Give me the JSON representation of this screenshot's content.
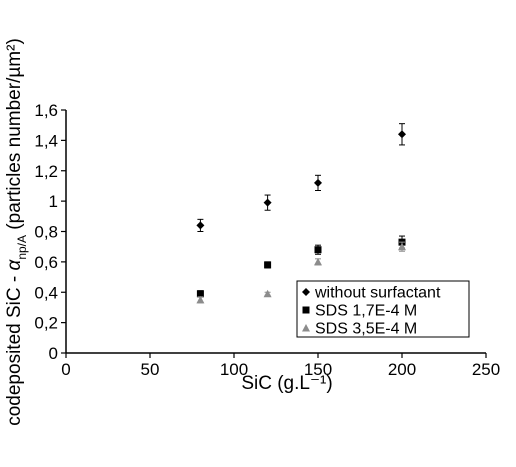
{
  "chart_data": {
    "type": "scatter",
    "xlabel": "SiC (g.L⁻¹)",
    "ylabel": "codeposited SiC - αnp/A (particles number/µm²)",
    "ylabel_parts": {
      "prefix": "codeposited SiC - ",
      "symbol": "α",
      "subscript": "np/A",
      "suffix": " (particles number/µm²)"
    },
    "xlim": [
      0,
      250
    ],
    "ylim": [
      0,
      1.6
    ],
    "xticks": [
      0,
      50,
      100,
      150,
      200,
      250
    ],
    "yticks": [
      0,
      0.2,
      0.4,
      0.6,
      0.8,
      1,
      1.2,
      1.4,
      1.6
    ],
    "xtick_labels": [
      "0",
      "50",
      "100",
      "150",
      "200",
      "250"
    ],
    "ytick_labels": [
      "0",
      "0,2",
      "0,4",
      "0,6",
      "0,8",
      "1",
      "1,2",
      "1,4",
      "1,6"
    ],
    "grid": false,
    "legend_position": "bottom-right",
    "series": [
      {
        "name": "without surfactant",
        "marker": "diamond",
        "color": "#000000",
        "x": [
          80,
          120,
          150,
          200
        ],
        "y": [
          0.84,
          0.99,
          1.12,
          1.44
        ],
        "err": [
          0.04,
          0.05,
          0.05,
          0.07
        ]
      },
      {
        "name": "SDS 1,7E-4 M",
        "marker": "square",
        "color": "#000000",
        "x": [
          80,
          120,
          150,
          200
        ],
        "y": [
          0.39,
          0.58,
          0.68,
          0.73
        ],
        "err": [
          0.02,
          0.02,
          0.03,
          0.04
        ]
      },
      {
        "name": "SDS 3,5E-4 M",
        "marker": "triangle",
        "color": "#8c8c8c",
        "x": [
          80,
          120,
          150,
          200
        ],
        "y": [
          0.35,
          0.39,
          0.6,
          0.7
        ],
        "err": [
          0.02,
          0.01,
          0.02,
          0.03
        ]
      }
    ]
  }
}
